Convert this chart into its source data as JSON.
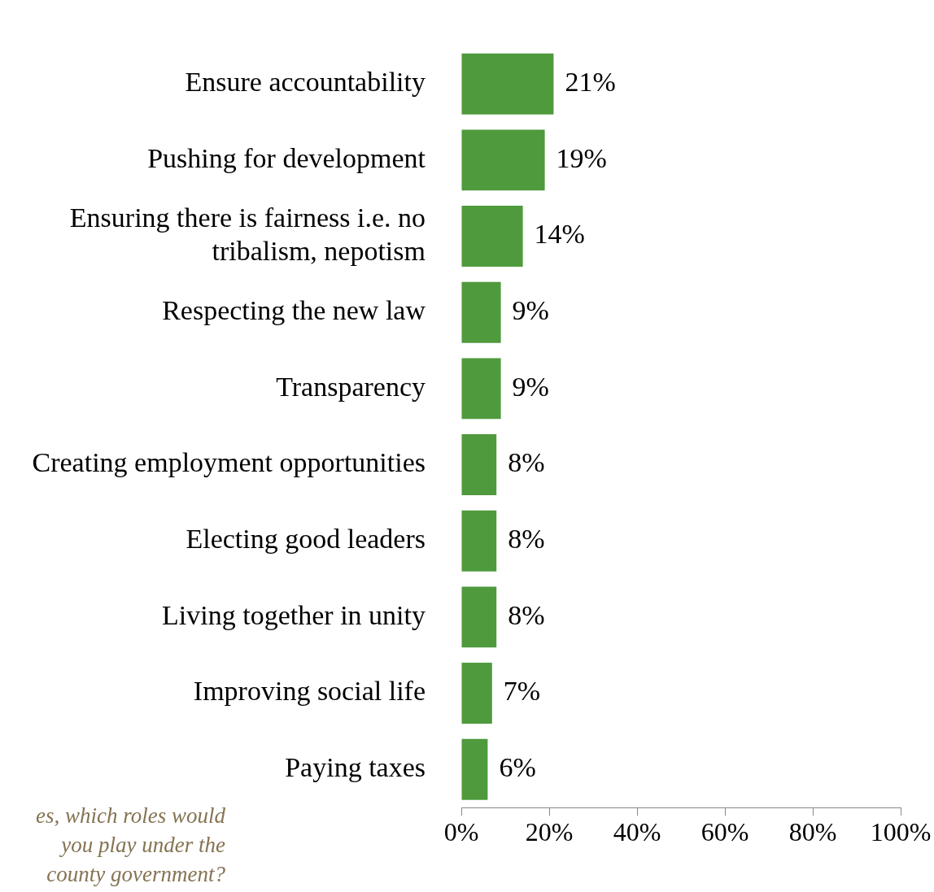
{
  "chart_data": {
    "type": "bar",
    "orientation": "horizontal",
    "categories": [
      "Ensure accountability",
      "Pushing for development",
      "Ensuring there is fairness i.e. no tribalism, nepotism",
      "Respecting the new law",
      "Transparency",
      "Creating employment opportunities",
      "Electing good leaders",
      "Living together in unity",
      "Improving social life",
      "Paying taxes"
    ],
    "values": [
      21,
      19,
      14,
      9,
      9,
      8,
      8,
      8,
      7,
      6
    ],
    "value_labels": [
      "21%",
      "19%",
      "14%",
      "9%",
      "9%",
      "8%",
      "8%",
      "8%",
      "7%",
      "6%"
    ],
    "color": "#4e9a3c",
    "xlim": [
      0,
      100
    ],
    "xticks": [
      {
        "value": 0,
        "label": "0%"
      },
      {
        "value": 20,
        "label": "20%"
      },
      {
        "value": 40,
        "label": "40%"
      },
      {
        "value": 60,
        "label": "60%"
      },
      {
        "value": 80,
        "label": "80%"
      },
      {
        "value": 100,
        "label": "100%"
      }
    ],
    "grid": false,
    "legend": false,
    "annotations": [
      "es, which roles would you play under the county government?"
    ]
  }
}
